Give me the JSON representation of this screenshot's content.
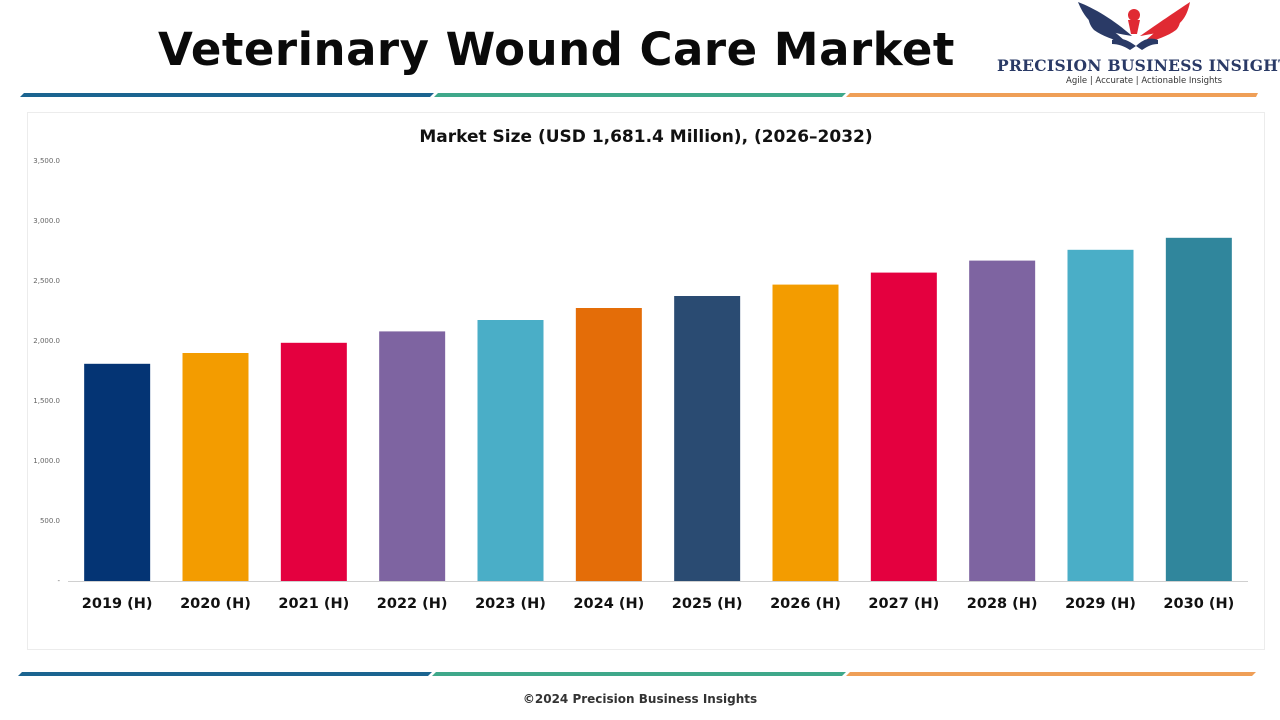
{
  "header": {
    "title": "Veterinary Wound Care Market",
    "logo_name": "PRECISION BUSINESS INSIGHTS",
    "logo_tagline": "Agile | Accurate | Actionable Insights"
  },
  "colors": {
    "divider": [
      "#1b6490",
      "#3fa88a",
      "#ef9f57"
    ],
    "axis": "#d0d0d0"
  },
  "chart_data": {
    "type": "bar",
    "title": "Market Size (USD 1,681.4 Million), (2026–2032)",
    "xlabel": "",
    "ylabel": "",
    "ylim": [
      0,
      3500
    ],
    "yticks": [
      0,
      500,
      1000,
      1500,
      2000,
      2500,
      3000,
      3500
    ],
    "ytick_labels": [
      "-",
      "500.0",
      "1,000.0",
      "1,500.0",
      "2,000.0",
      "2,500.0",
      "3,000.0",
      "3,500.0"
    ],
    "grid": false,
    "categories": [
      "2019 (H)",
      "2020 (H)",
      "2021 (H)",
      "2022 (H)",
      "2023 (H)",
      "2024 (H)",
      "2025 (H)",
      "2026 (H)",
      "2027 (H)",
      "2028 (H)",
      "2029 (H)",
      "2030 (H)"
    ],
    "values": [
      1810,
      1900,
      1985,
      2080,
      2175,
      2275,
      2375,
      2470,
      2570,
      2670,
      2760,
      2860
    ],
    "bar_colors": [
      "#043474",
      "#f39c00",
      "#e4003f",
      "#7e64a1",
      "#4aaec7",
      "#e46d08",
      "#2a4b72",
      "#f39c00",
      "#e4003f",
      "#7e64a1",
      "#4aaec7",
      "#30869c"
    ]
  },
  "footer": {
    "copyright": "©2024 Precision Business Insights"
  }
}
